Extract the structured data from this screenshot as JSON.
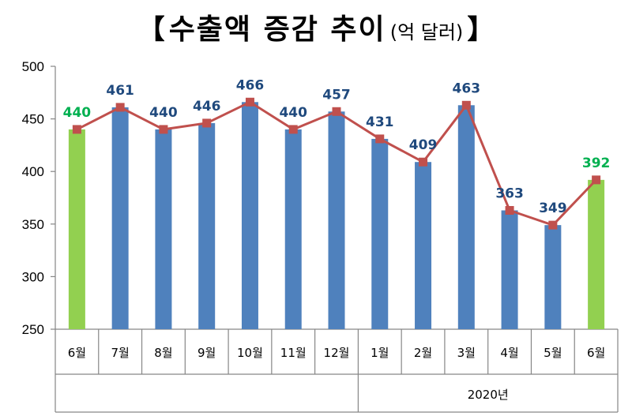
{
  "chart_data": {
    "type": "bar",
    "title": {
      "open_bracket": "【",
      "main": "수출액 증감 추이",
      "unit": "(억 달러)",
      "close_bracket": "】"
    },
    "categories": [
      "6월",
      "7월",
      "8월",
      "9월",
      "10월",
      "11월",
      "12월",
      "1월",
      "2월",
      "3월",
      "4월",
      "5월",
      "6월"
    ],
    "values": [
      440,
      461,
      440,
      446,
      466,
      440,
      457,
      431,
      409,
      463,
      363,
      349,
      392
    ],
    "highlight_indices": [
      0,
      12
    ],
    "group_label": "2020년",
    "group_start_index": 7,
    "ylim": [
      250,
      500
    ],
    "yticks": [
      250,
      300,
      350,
      400,
      450,
      500
    ],
    "overlay_line": true,
    "colors": {
      "bar": "#4F81BD",
      "highlight_bar": "#92D050",
      "line": "#C0504D",
      "label": "#1F497D",
      "highlight_label": "#00B050",
      "axis": "#868686"
    }
  }
}
